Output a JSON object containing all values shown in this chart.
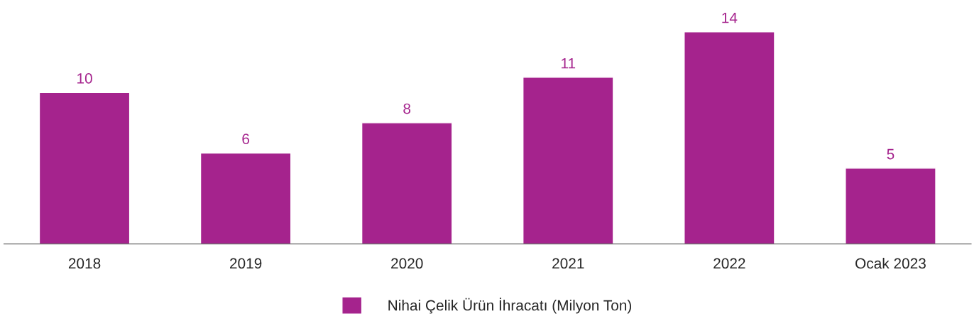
{
  "chart_data": {
    "type": "bar",
    "categories": [
      "2018",
      "2019",
      "2020",
      "2021",
      "2022",
      "Ocak 2023"
    ],
    "series": [
      {
        "name": "Nihai Çelik Ürün İhracatı (Milyon Ton)",
        "color": "#a5238d",
        "values": [
          10,
          6,
          8,
          11,
          14,
          5
        ]
      }
    ],
    "data_labels": true,
    "legend": "bottom",
    "grid": false,
    "tick_labels": "x"
  }
}
